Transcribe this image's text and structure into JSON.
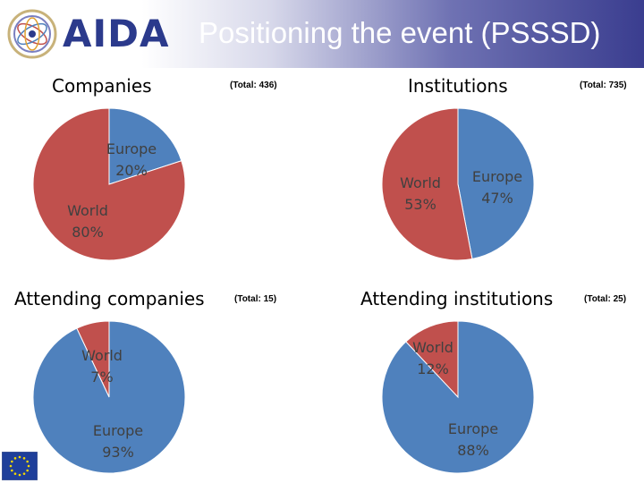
{
  "header": {
    "logo_text": "AIDA",
    "title": "Positioning the event (PSSSD)"
  },
  "colors": {
    "europe": "#4f81bd",
    "world": "#c0504d",
    "flag_blue": "#1f3f9a",
    "flag_star": "#f5d800"
  },
  "icons": [
    "aida-logo-icon",
    "eu-flag-icon"
  ],
  "chart_data": [
    {
      "type": "pie",
      "title": "Companies",
      "total_label": "(Total: 436)",
      "slices": [
        {
          "name": "Europe",
          "value": 20,
          "label": "20%"
        },
        {
          "name": "World",
          "value": 80,
          "label": "80%"
        }
      ]
    },
    {
      "type": "pie",
      "title": "Institutions",
      "total_label": "(Total: 735)",
      "slices": [
        {
          "name": "Europe",
          "value": 47,
          "label": "47%"
        },
        {
          "name": "World",
          "value": 53,
          "label": "53%"
        }
      ]
    },
    {
      "type": "pie",
      "title": "Attending companies",
      "total_label": "(Total: 15)",
      "slices": [
        {
          "name": "Europe",
          "value": 93,
          "label": "93%"
        },
        {
          "name": "World",
          "value": 7,
          "label": "7%"
        }
      ]
    },
    {
      "type": "pie",
      "title": "Attending institutions",
      "total_label": "(Total: 25)",
      "slices": [
        {
          "name": "Europe",
          "value": 88,
          "label": "88%"
        },
        {
          "name": "World",
          "value": 12,
          "label": "12%"
        }
      ]
    }
  ]
}
